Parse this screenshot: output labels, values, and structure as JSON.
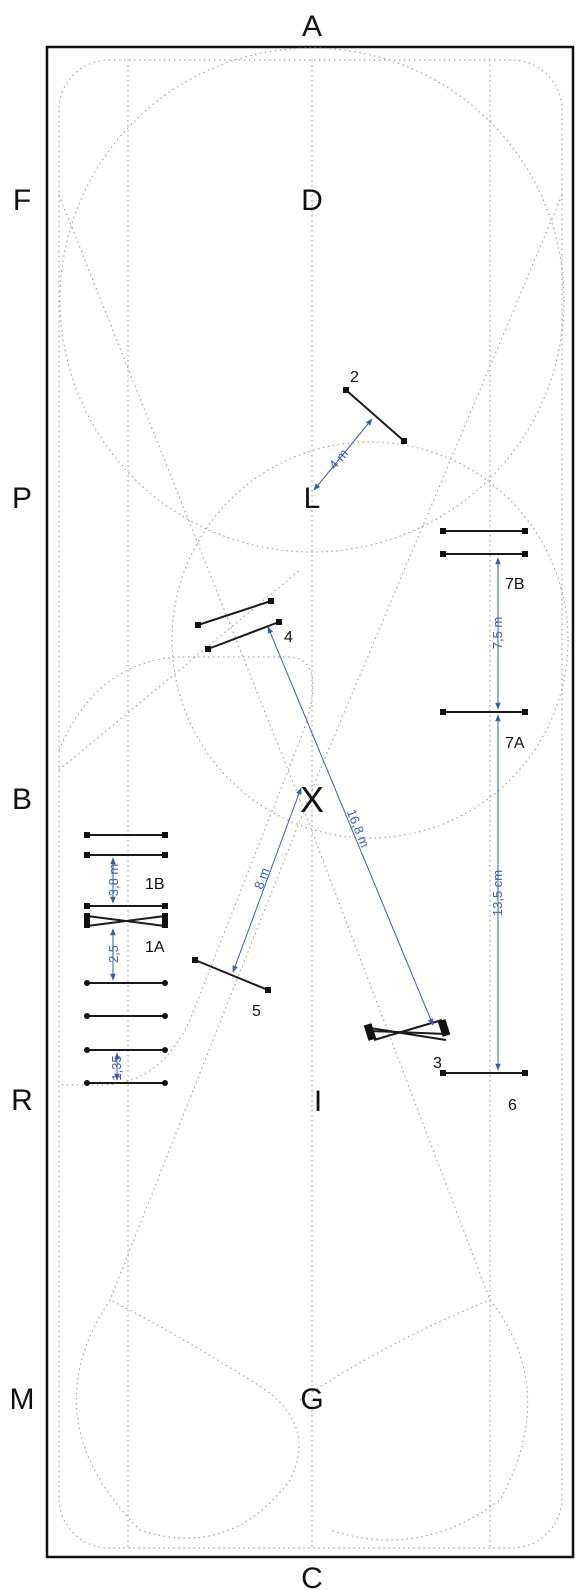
{
  "arena_letters": {
    "a": "A",
    "c": "C",
    "f": "F",
    "p": "P",
    "b": "B",
    "r": "R",
    "m": "M",
    "d": "D",
    "l": "L",
    "x": "X",
    "i": "I",
    "g": "G"
  },
  "obstacles": {
    "o1a": "1A",
    "o1b": "1B",
    "o2": "2",
    "o3": "3",
    "o4": "4",
    "o5": "5",
    "o6": "6",
    "o7a": "7A",
    "o7b": "7B"
  },
  "measurements": {
    "m4": "4 m",
    "m75": "7,5 m",
    "m168": "16,8 m",
    "m8": "8 m",
    "m135": "13,5 cm",
    "m38": "3,8 m",
    "m25": "2,5",
    "m135b": "1,35"
  },
  "colors": {
    "outline": "#111111",
    "dotted_guides": "#a0a0a0",
    "measure_lines": "#3a5fa8"
  }
}
